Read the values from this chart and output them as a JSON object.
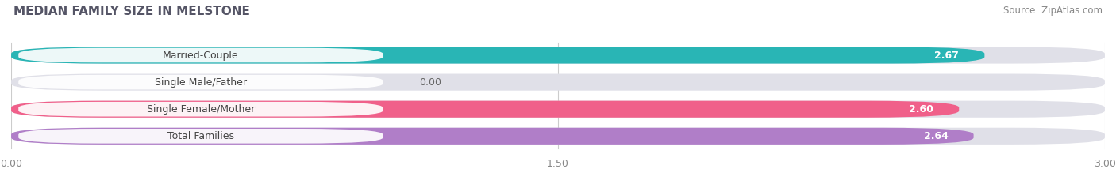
{
  "title": "MEDIAN FAMILY SIZE IN MELSTONE",
  "source": "Source: ZipAtlas.com",
  "categories": [
    "Married-Couple",
    "Single Male/Father",
    "Single Female/Mother",
    "Total Families"
  ],
  "values": [
    2.67,
    0.0,
    2.6,
    2.64
  ],
  "bar_colors": [
    "#29b5b5",
    "#aab4e8",
    "#f0608a",
    "#b07ec8"
  ],
  "bar_bg_color": "#e0e0e8",
  "xlim": [
    0,
    3.0
  ],
  "xticks": [
    0.0,
    1.5,
    3.0
  ],
  "xtick_labels": [
    "0.00",
    "1.50",
    "3.00"
  ],
  "figsize": [
    14.06,
    2.33
  ],
  "dpi": 100,
  "bg_color": "#ffffff"
}
